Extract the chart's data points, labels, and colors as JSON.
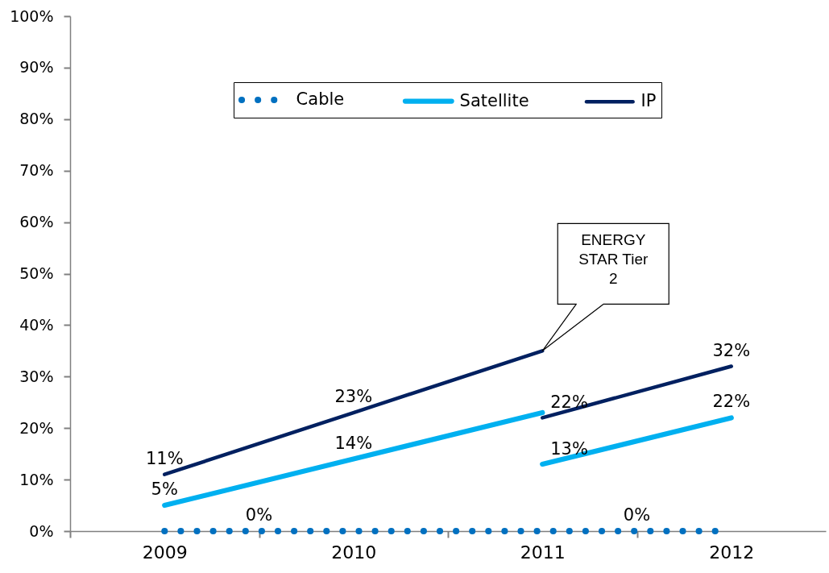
{
  "chart_data": {
    "type": "line",
    "grid": false,
    "legend": "top",
    "xlim": [
      2008.5,
      2012.5
    ],
    "xticks": [
      {
        "value": 2008.5,
        "label": null
      },
      2009,
      {
        "value": 2009.5,
        "label": null
      },
      2010,
      {
        "value": 2010.5,
        "label": null
      },
      2011,
      {
        "value": 2011.5,
        "label": null
      },
      2012
    ],
    "ylim": [
      0,
      100
    ],
    "yticks": [
      {
        "value": 0,
        "label": "0%"
      },
      {
        "value": 10,
        "label": "10%"
      },
      {
        "value": 20,
        "label": "20%"
      },
      {
        "value": 30,
        "label": "30%"
      },
      {
        "value": 40,
        "label": "40%"
      },
      {
        "value": 50,
        "label": "50%"
      },
      {
        "value": 60,
        "label": "60%"
      },
      {
        "value": 70,
        "label": "70%"
      },
      {
        "value": 80,
        "label": "80%"
      },
      {
        "value": 90,
        "label": "90%"
      },
      {
        "value": 100,
        "label": "100%"
      }
    ],
    "series": [
      {
        "name": "Cable",
        "color": "#0070c0",
        "line_style": "dotted",
        "x": [
          2009,
          2009.5,
          2011.5,
          2012
        ],
        "values": [
          0,
          0,
          0,
          0
        ],
        "value_labels": [
          null,
          "0%",
          "0%",
          null
        ]
      },
      {
        "name": "Satellite",
        "color": "#00b0f0",
        "line_style": "solid",
        "x": [
          2009,
          2010,
          2011,
          null,
          2011,
          2012
        ],
        "values": [
          5,
          14,
          23,
          null,
          13,
          22
        ],
        "value_labels": [
          "5%",
          "14%",
          null,
          null,
          "13%",
          "22%"
        ]
      },
      {
        "name": "IP",
        "color": "#002060",
        "line_style": "solid",
        "x": [
          2009,
          2010,
          2011,
          null,
          2011,
          2012
        ],
        "values": [
          11,
          23,
          35,
          null,
          22,
          32
        ],
        "value_labels": [
          "11%",
          "23%",
          null,
          null,
          "22%",
          "32%"
        ]
      }
    ],
    "annotations": [
      {
        "text": "ENERGY STAR Tier 2",
        "x": 2011,
        "y": 35
      }
    ]
  }
}
